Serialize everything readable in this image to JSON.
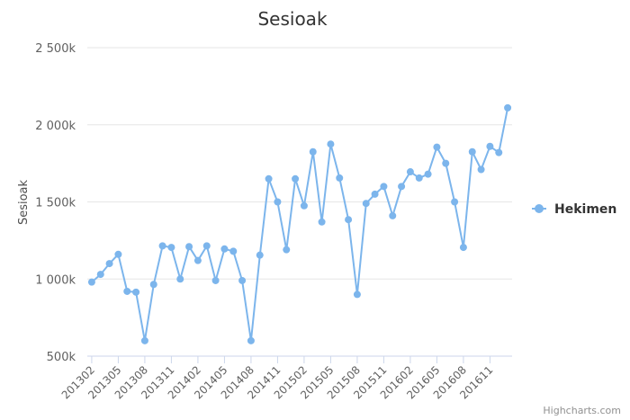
{
  "chart_data": {
    "type": "line",
    "title": "Sesioak",
    "ylabel": "Sesioak",
    "xlabel": "",
    "ylim": [
      500000,
      2500000
    ],
    "yticks": [
      500000,
      1000000,
      1500000,
      2000000,
      2500000
    ],
    "ytick_labels": [
      "500k",
      "1 000k",
      "1 500k",
      "2 000k",
      "2 500k"
    ],
    "xtick_labels": [
      "201302",
      "201305",
      "201308",
      "201311",
      "201402",
      "201405",
      "201408",
      "201411",
      "201502",
      "201505",
      "201508",
      "201511",
      "201602",
      "201605",
      "201608",
      "201611"
    ],
    "categories": [
      "201302",
      "201303",
      "201304",
      "201305",
      "201306",
      "201307",
      "201308",
      "201309",
      "201310",
      "201311",
      "201312",
      "201401",
      "201402",
      "201403",
      "201404",
      "201405",
      "201406",
      "201407",
      "201408",
      "201409",
      "201410",
      "201411",
      "201412",
      "201501",
      "201502",
      "201503",
      "201504",
      "201505",
      "201506",
      "201507",
      "201508",
      "201509",
      "201510",
      "201511",
      "201512",
      "201601",
      "201602",
      "201603",
      "201604",
      "201605",
      "201606",
      "201607",
      "201608",
      "201609",
      "201610",
      "201611",
      "201612",
      "201701"
    ],
    "series": [
      {
        "name": "Hekimen",
        "color": "#7cb5ec",
        "values": [
          980000,
          1030000,
          1100000,
          1160000,
          920000,
          915000,
          600000,
          965000,
          1215000,
          1205000,
          1000000,
          1210000,
          1120000,
          1215000,
          990000,
          1195000,
          1180000,
          990000,
          600000,
          1155000,
          1650000,
          1500000,
          1190000,
          1650000,
          1475000,
          1825000,
          1370000,
          1875000,
          1655000,
          1385000,
          900000,
          1490000,
          1550000,
          1600000,
          1410000,
          1600000,
          1695000,
          1655000,
          1680000,
          1855000,
          1750000,
          1500000,
          1205000,
          1825000,
          1710000,
          1860000,
          1820000,
          2110000
        ]
      }
    ],
    "legend_position": "right",
    "grid": true
  },
  "credits": "Highcharts.com"
}
